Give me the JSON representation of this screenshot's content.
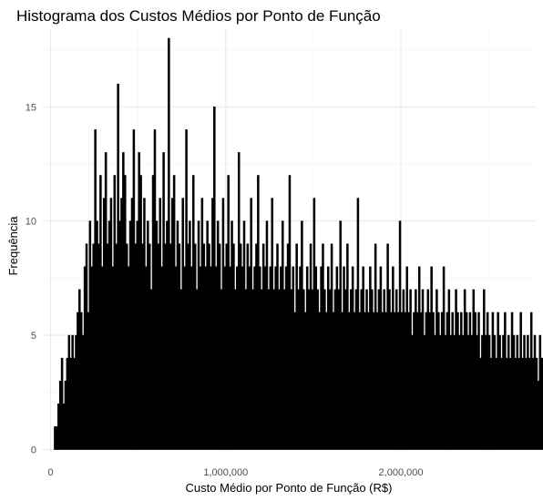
{
  "chart_data": {
    "type": "bar",
    "subtype": "histogram",
    "title": "Histograma dos Custos Médios por Ponto de Função",
    "xlabel": "Custo Médio por Ponto de Função (R$)",
    "ylabel": "Frequência",
    "xlim": [
      -50000,
      2770000
    ],
    "ylim": [
      -0.1,
      18.4
    ],
    "x_ticks": [
      0,
      1000000,
      2000000
    ],
    "x_tick_labels": [
      "0",
      "1,000,000",
      "2,000,000"
    ],
    "y_ticks": [
      0,
      5,
      10,
      15
    ],
    "y_tick_labels": [
      "0",
      "5",
      "10",
      "15"
    ],
    "grid": true,
    "legend": "none",
    "bar_color": "#000000",
    "bin_start": 20000,
    "bin_width": 10000,
    "values": [
      1,
      1,
      2,
      3,
      4,
      2,
      3,
      4,
      5,
      4,
      5,
      4,
      5,
      6,
      7,
      6,
      5,
      8,
      9,
      6,
      10,
      8,
      9,
      14,
      10,
      9,
      12,
      8,
      11,
      13,
      9,
      10,
      11,
      8,
      12,
      9,
      16,
      10,
      11,
      13,
      12,
      9,
      8,
      10,
      11,
      14,
      9,
      10,
      13,
      12,
      9,
      11,
      8,
      10,
      9,
      7,
      12,
      14,
      10,
      9,
      11,
      8,
      13,
      9,
      10,
      18,
      9,
      11,
      12,
      8,
      10,
      9,
      7,
      11,
      8,
      14,
      9,
      10,
      8,
      12,
      9,
      7,
      10,
      8,
      11,
      9,
      8,
      10,
      9,
      8,
      11,
      15,
      8,
      10,
      9,
      7,
      11,
      8,
      9,
      12,
      8,
      10,
      9,
      7,
      8,
      13,
      9,
      8,
      10,
      7,
      9,
      8,
      11,
      7,
      8,
      9,
      12,
      8,
      7,
      9,
      8,
      10,
      7,
      8,
      11,
      7,
      8,
      9,
      7,
      8,
      10,
      7,
      8,
      9,
      12,
      7,
      8,
      6,
      9,
      7,
      8,
      10,
      7,
      6,
      8,
      7,
      9,
      7,
      11,
      8,
      7,
      6,
      8,
      9,
      7,
      6,
      8,
      7,
      9,
      6,
      7,
      8,
      7,
      10,
      6,
      8,
      7,
      9,
      6,
      7,
      8,
      6,
      7,
      11,
      6,
      7,
      8,
      6,
      7,
      6,
      8,
      7,
      6,
      9,
      6,
      7,
      8,
      6,
      7,
      6,
      9,
      7,
      6,
      8,
      6,
      7,
      6,
      10,
      6,
      7,
      6,
      8,
      6,
      7,
      5,
      6,
      7,
      6,
      8,
      6,
      7,
      5,
      6,
      7,
      6,
      8,
      6,
      5,
      7,
      6,
      5,
      6,
      8,
      5,
      6,
      7,
      5,
      6,
      5,
      7,
      6,
      5,
      6,
      5,
      7,
      6,
      5,
      6,
      5,
      7,
      6,
      5,
      6,
      4,
      5,
      7,
      5,
      6,
      5,
      4,
      6,
      5,
      4,
      6,
      5,
      4,
      5,
      6,
      4,
      5,
      4,
      6,
      5,
      4,
      5,
      4,
      6,
      4,
      5,
      4,
      5,
      4,
      6,
      4,
      5,
      4,
      3,
      5,
      4,
      3,
      5,
      4,
      3,
      4,
      5,
      3,
      4,
      3,
      5,
      4,
      3,
      4,
      3,
      4,
      6,
      3,
      4,
      3,
      4,
      3,
      4,
      3,
      2,
      4,
      3,
      4,
      3,
      2,
      4,
      3,
      2,
      3,
      4,
      3,
      2,
      3,
      2,
      3,
      4,
      2,
      3,
      2,
      3,
      2,
      3,
      2,
      3,
      2,
      3,
      2,
      1,
      3,
      2,
      1,
      2,
      3,
      2,
      1,
      2,
      1,
      3,
      2,
      1,
      2,
      1,
      2,
      1,
      2,
      1,
      2,
      1,
      2,
      1,
      0,
      1,
      2,
      1,
      0,
      1,
      0,
      1
    ]
  }
}
